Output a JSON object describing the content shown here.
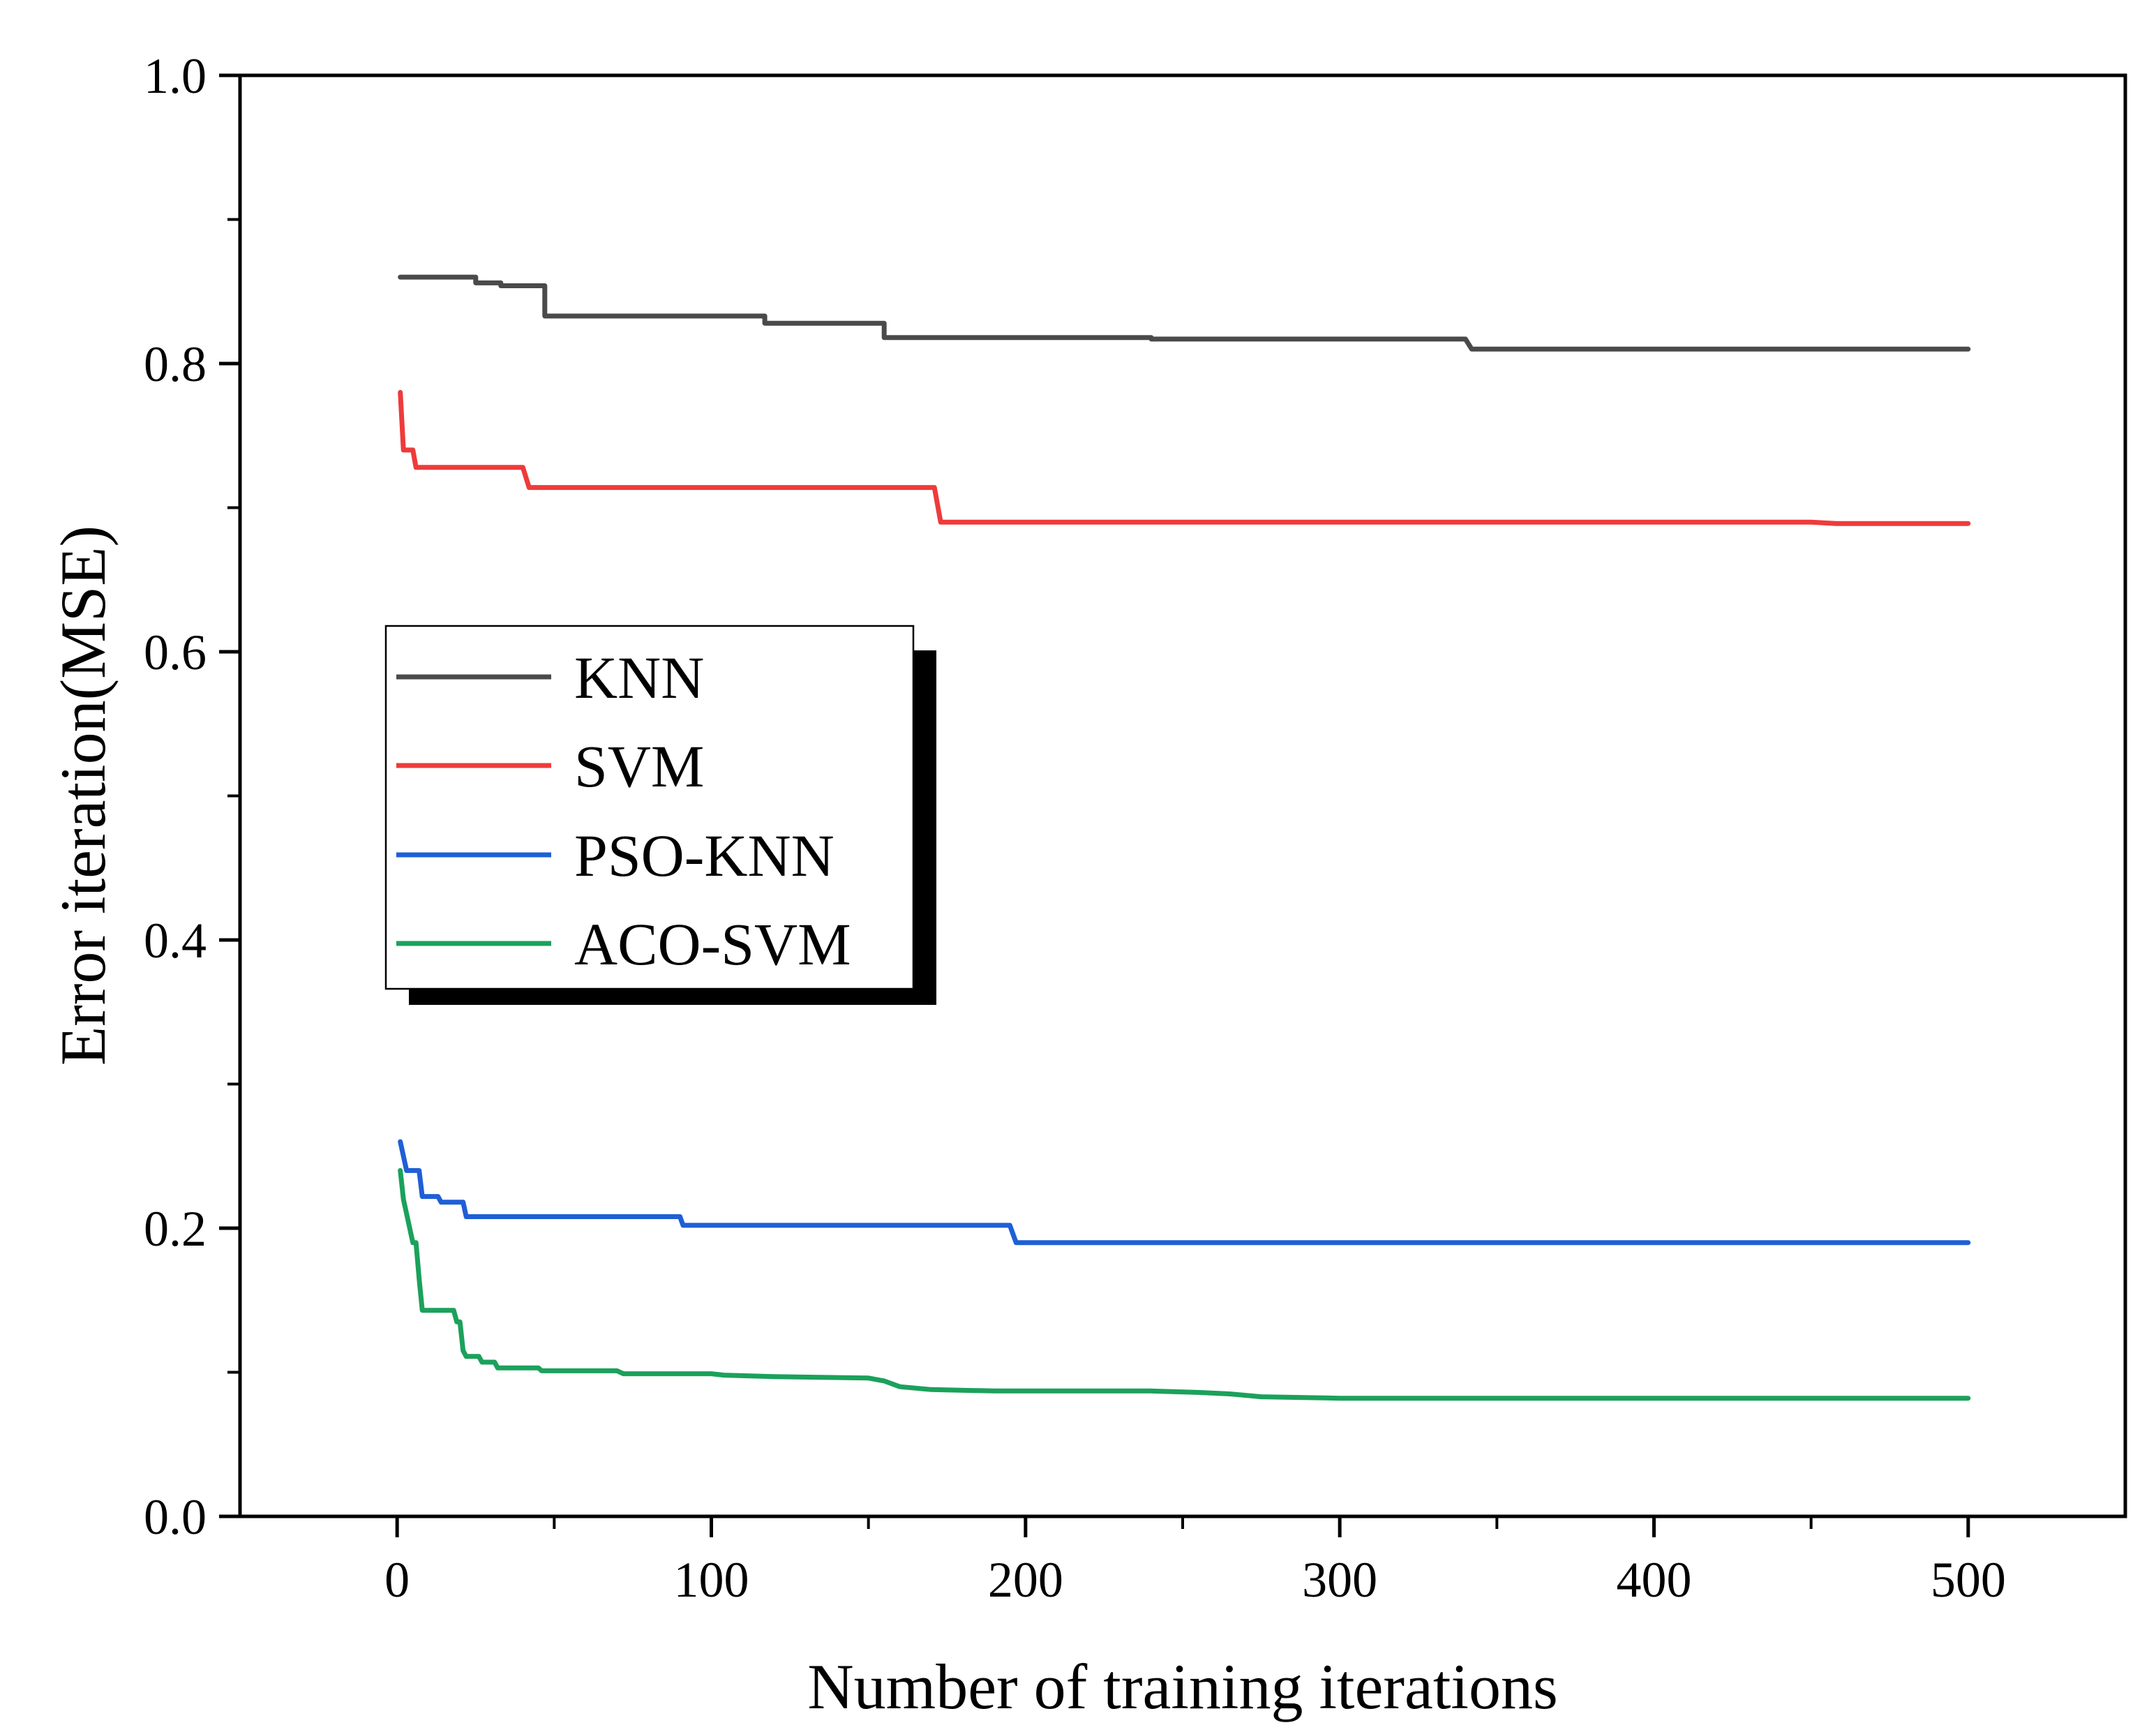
{
  "chart_data": {
    "type": "line",
    "title": "",
    "xlabel": "Number of training iterations",
    "ylabel": "Error iteration(MSE)",
    "xlim": [
      -50,
      550
    ],
    "ylim": [
      0.0,
      1.0
    ],
    "x_ticks": [
      0,
      100,
      200,
      300,
      400,
      500
    ],
    "x_tick_labels": [
      "0",
      "100",
      "200",
      "300",
      "400",
      "500"
    ],
    "x_minor_ticks": [
      50,
      150,
      250,
      350,
      450
    ],
    "y_ticks": [
      0.0,
      0.2,
      0.4,
      0.6,
      0.8,
      1.0
    ],
    "y_tick_labels": [
      "0.0",
      "0.2",
      "0.4",
      "0.6",
      "0.8",
      "1.0"
    ],
    "y_minor_ticks": [
      0.1,
      0.3,
      0.5,
      0.7,
      0.9
    ],
    "grid": false,
    "legend_position": "center-left",
    "series": [
      {
        "name": "KNN",
        "color": "#4a4a4a",
        "points": [
          [
            1,
            0.86
          ],
          [
            25,
            0.86
          ],
          [
            25,
            0.856
          ],
          [
            33,
            0.856
          ],
          [
            33,
            0.854
          ],
          [
            47,
            0.854
          ],
          [
            47,
            0.833
          ],
          [
            117,
            0.833
          ],
          [
            117,
            0.828
          ],
          [
            155,
            0.828
          ],
          [
            155,
            0.818
          ],
          [
            240,
            0.818
          ],
          [
            240,
            0.817
          ],
          [
            340,
            0.817
          ],
          [
            342,
            0.81
          ],
          [
            500,
            0.81
          ]
        ]
      },
      {
        "name": "SVM",
        "color": "#ee3b3b",
        "points": [
          [
            1,
            0.78
          ],
          [
            2,
            0.74
          ],
          [
            5,
            0.74
          ],
          [
            6,
            0.728
          ],
          [
            40,
            0.728
          ],
          [
            42,
            0.714
          ],
          [
            171,
            0.714
          ],
          [
            173,
            0.69
          ],
          [
            450,
            0.69
          ],
          [
            458,
            0.689
          ],
          [
            500,
            0.689
          ]
        ]
      },
      {
        "name": "PSO-KNN",
        "color": "#1f5fd6",
        "points": [
          [
            1,
            0.26
          ],
          [
            3,
            0.24
          ],
          [
            7,
            0.24
          ],
          [
            8,
            0.222
          ],
          [
            13,
            0.222
          ],
          [
            14,
            0.218
          ],
          [
            21,
            0.218
          ],
          [
            22,
            0.208
          ],
          [
            90,
            0.208
          ],
          [
            91,
            0.202
          ],
          [
            195,
            0.202
          ],
          [
            197,
            0.19
          ],
          [
            500,
            0.19
          ]
        ]
      },
      {
        "name": "ACO-SVM",
        "color": "#1ba15b",
        "points": [
          [
            1,
            0.24
          ],
          [
            2,
            0.22
          ],
          [
            3,
            0.21
          ],
          [
            4,
            0.2
          ],
          [
            5,
            0.19
          ],
          [
            6,
            0.19
          ],
          [
            7,
            0.165
          ],
          [
            8,
            0.143
          ],
          [
            18,
            0.143
          ],
          [
            19,
            0.135
          ],
          [
            20,
            0.135
          ],
          [
            21,
            0.115
          ],
          [
            22,
            0.111
          ],
          [
            26,
            0.111
          ],
          [
            27,
            0.107
          ],
          [
            31,
            0.107
          ],
          [
            32,
            0.103
          ],
          [
            45,
            0.103
          ],
          [
            46,
            0.101
          ],
          [
            70,
            0.101
          ],
          [
            72,
            0.099
          ],
          [
            100,
            0.099
          ],
          [
            104,
            0.098
          ],
          [
            120,
            0.097
          ],
          [
            150,
            0.096
          ],
          [
            155,
            0.094
          ],
          [
            160,
            0.09
          ],
          [
            170,
            0.088
          ],
          [
            190,
            0.087
          ],
          [
            240,
            0.087
          ],
          [
            255,
            0.086
          ],
          [
            265,
            0.085
          ],
          [
            275,
            0.083
          ],
          [
            300,
            0.082
          ],
          [
            500,
            0.082
          ]
        ]
      }
    ]
  }
}
